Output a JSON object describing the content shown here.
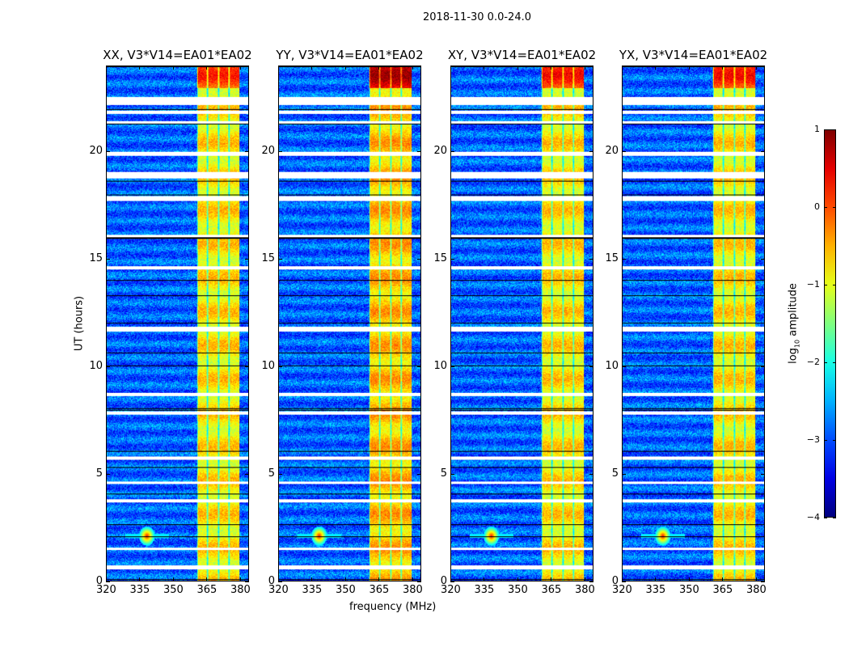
{
  "chart_data": {
    "type": "heatmap",
    "title": "2018-11-30 0.0-24.0",
    "xlabel": "frequency (MHz)",
    "ylabel": "UT (hours)",
    "xlim": [
      320,
      384
    ],
    "ylim": [
      0,
      24
    ],
    "xticks": [
      320,
      335,
      350,
      365,
      380
    ],
    "yticks": [
      0,
      5,
      10,
      15,
      20
    ],
    "panels": [
      {
        "title": "XX, V3*V14=EA01*EA02",
        "band_level": -0.8,
        "upper_level": 0.0
      },
      {
        "title": "YY, V3*V14=EA01*EA02",
        "band_level": -0.6,
        "upper_level": 0.6
      },
      {
        "title": "XY, V3*V14=EA01*EA02",
        "band_level": -0.8,
        "upper_level": 0.1
      },
      {
        "title": "YX, V3*V14=EA01*EA02",
        "band_level": -0.8,
        "upper_level": 0.1
      }
    ],
    "background_level": -2.9,
    "bright_band_mhz": [
      360.5,
      380
    ],
    "rfi_spot": {
      "freq": 338,
      "ut": 2.1,
      "level": 0.3
    },
    "flagged_ut_rows": [
      [
        22.2,
        22.6
      ],
      [
        21.8,
        21.95
      ],
      [
        21.35,
        21.45
      ],
      [
        19.85,
        20.05
      ],
      [
        18.8,
        19.1
      ],
      [
        17.75,
        17.95
      ],
      [
        16.05,
        16.15
      ],
      [
        14.55,
        14.7
      ],
      [
        11.65,
        11.85
      ],
      [
        8.65,
        8.8
      ],
      [
        7.75,
        7.9
      ],
      [
        5.65,
        5.8
      ],
      [
        4.55,
        4.65
      ],
      [
        3.65,
        3.8
      ],
      [
        1.45,
        1.55
      ],
      [
        0.55,
        0.75
      ]
    ],
    "colorbar": {
      "label": "log",
      "label_sub": "10",
      "label_suffix": " amplitude",
      "range": [
        -4,
        1
      ],
      "ticks": [
        "1",
        "0",
        "−1",
        "−2",
        "−3",
        "−4"
      ],
      "tick_values": [
        1,
        0,
        -1,
        -2,
        -3,
        -4
      ],
      "colormap": "jet"
    }
  }
}
